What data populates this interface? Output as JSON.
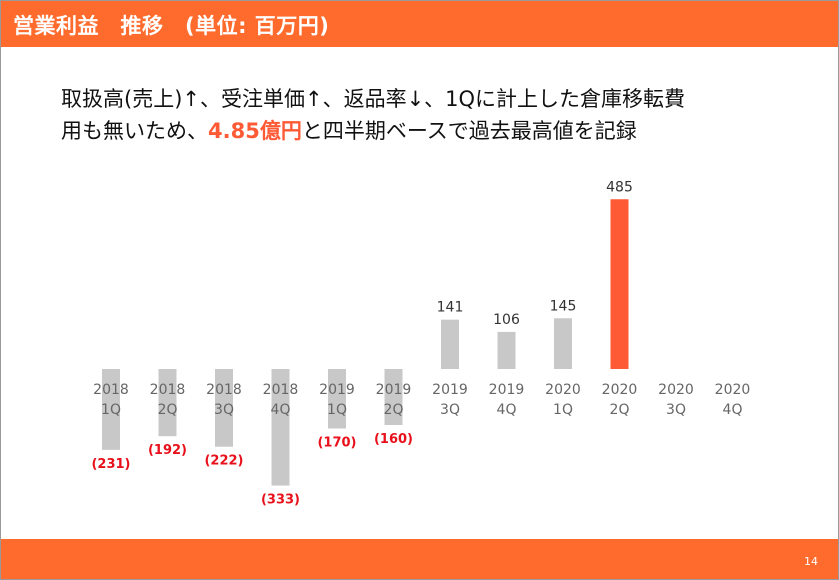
{
  "slide": {
    "title": "営業利益　推移　(単位: 百万円)",
    "headline_line1": "取扱高(売上)↑、受注単価↑、返品率↓、1Qに計上した倉庫移転費",
    "headline_line2_pre": "用も無いため、",
    "headline_emphasis": "4.85億円",
    "headline_line2_post": "と四半期ベースで過去最高値を記録",
    "page_number": "14"
  },
  "colors": {
    "accent": "#ff6b2d",
    "positive_bar": "#c8c8c8",
    "highlight_bar": "#ff5a36",
    "negative_label": "#e8101a"
  },
  "chart_data": {
    "type": "bar",
    "categories": [
      [
        "2018",
        "1Q"
      ],
      [
        "2018",
        "2Q"
      ],
      [
        "2018",
        "3Q"
      ],
      [
        "2018",
        "4Q"
      ],
      [
        "2019",
        "1Q"
      ],
      [
        "2019",
        "2Q"
      ],
      [
        "2019",
        "3Q"
      ],
      [
        "2019",
        "4Q"
      ],
      [
        "2020",
        "1Q"
      ],
      [
        "2020",
        "2Q"
      ],
      [
        "2020",
        "3Q"
      ],
      [
        "2020",
        "4Q"
      ]
    ],
    "values": [
      -231,
      -192,
      -222,
      -333,
      -170,
      -160,
      141,
      106,
      145,
      485,
      null,
      null
    ],
    "data_labels": [
      "(231)",
      "(192)",
      "(222)",
      "(333)",
      "(170)",
      "(160)",
      "141",
      "106",
      "145",
      "485",
      "",
      ""
    ],
    "highlight_index": 9,
    "ylim": [
      -340,
      490
    ],
    "grid": false,
    "legend": "none"
  }
}
